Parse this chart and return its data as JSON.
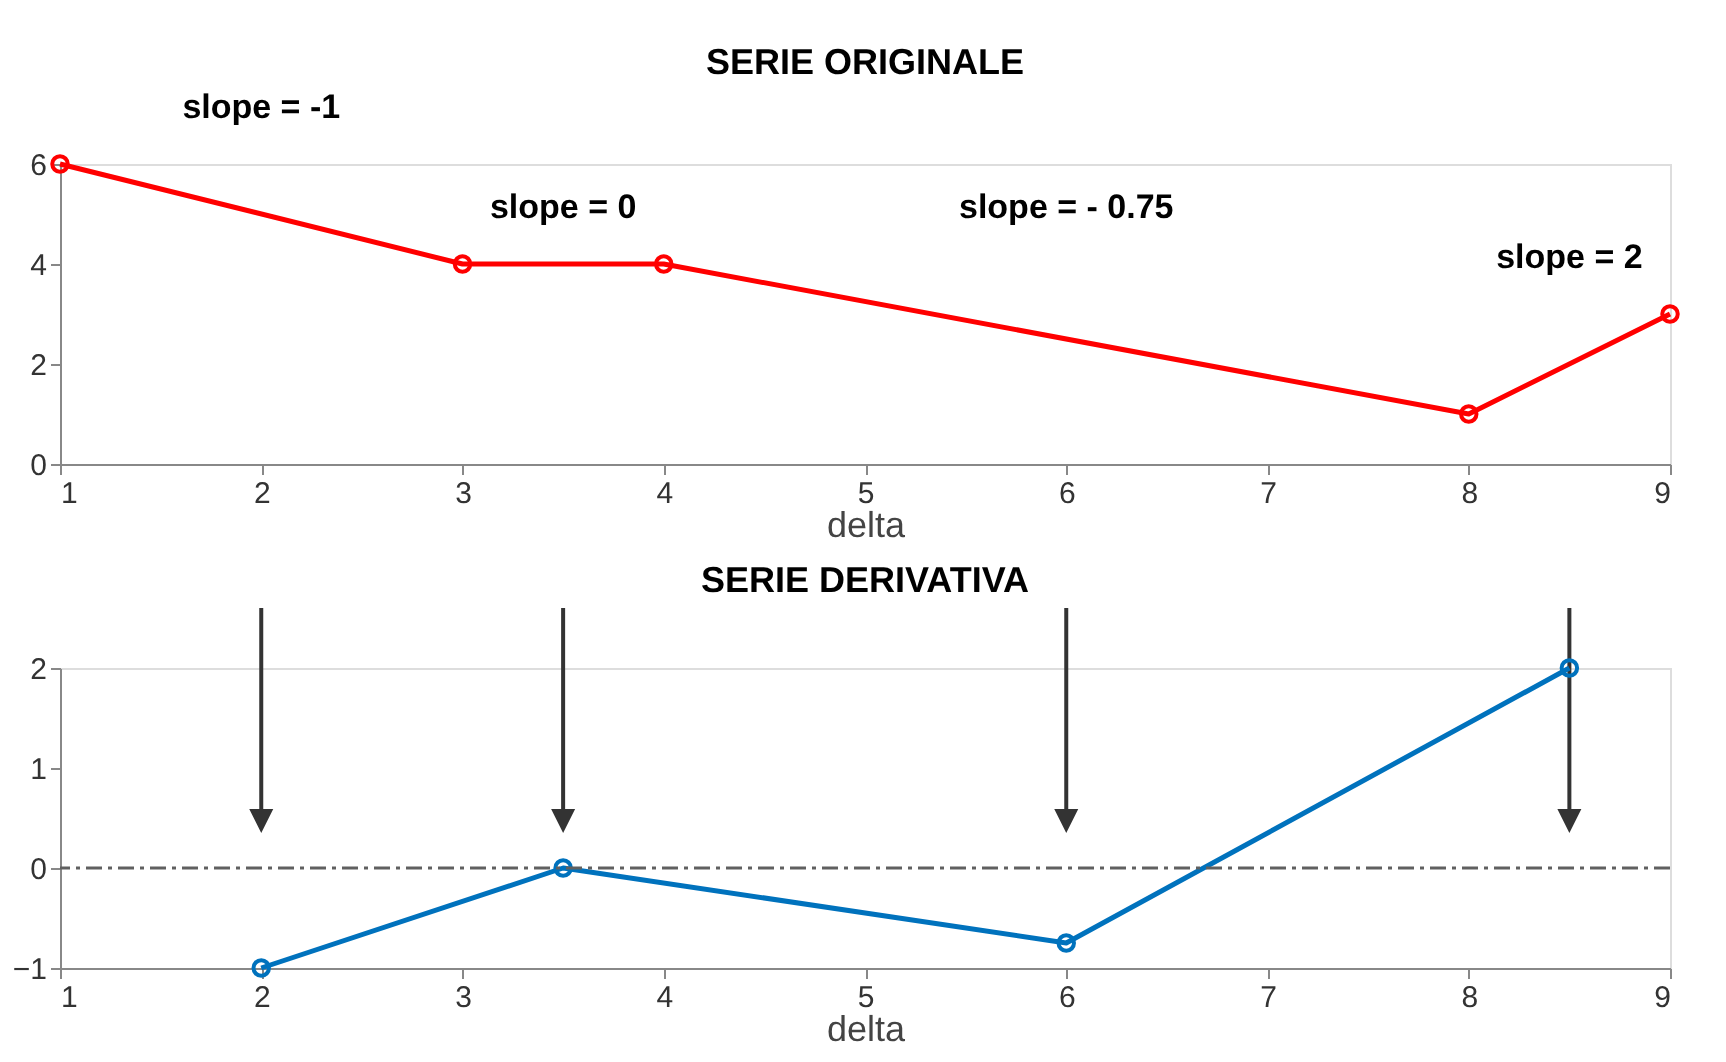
{
  "chart_data": [
    {
      "type": "line",
      "title": "SERIE ORIGINALE",
      "xlabel": "delta",
      "x": [
        1,
        3,
        4,
        8,
        9
      ],
      "series": [
        {
          "color": "#ff0000",
          "values": [
            6,
            4,
            4,
            1,
            3
          ]
        }
      ],
      "xlim": [
        1,
        9
      ],
      "xticks": [
        1,
        2,
        3,
        4,
        5,
        6,
        7,
        8,
        9
      ],
      "ylim": [
        0,
        6
      ],
      "yticks": [
        0,
        2,
        4,
        6
      ],
      "marker": "circle",
      "line_style": "solid",
      "grid": false,
      "annotations": [
        "slope = -1",
        "slope = 0",
        "slope = - 0.75",
        "slope = 2"
      ]
    },
    {
      "type": "line",
      "title": "SERIE DERIVATIVA",
      "xlabel": "delta",
      "x": [
        2,
        3.5,
        6,
        8.5
      ],
      "series": [
        {
          "color": "#0072bd",
          "values": [
            -1,
            0,
            -0.75,
            2
          ]
        }
      ],
      "xlim": [
        1,
        9
      ],
      "xticks": [
        1,
        2,
        3,
        4,
        5,
        6,
        7,
        8,
        9
      ],
      "ylim": [
        -1,
        2
      ],
      "yticks": [
        -1,
        0,
        1,
        2
      ],
      "marker": "circle",
      "line_style": "solid",
      "grid": false,
      "ref_lines": [
        {
          "axis": "y",
          "value": 0,
          "color": "#606060",
          "line_style": "dashdot"
        }
      ]
    }
  ]
}
